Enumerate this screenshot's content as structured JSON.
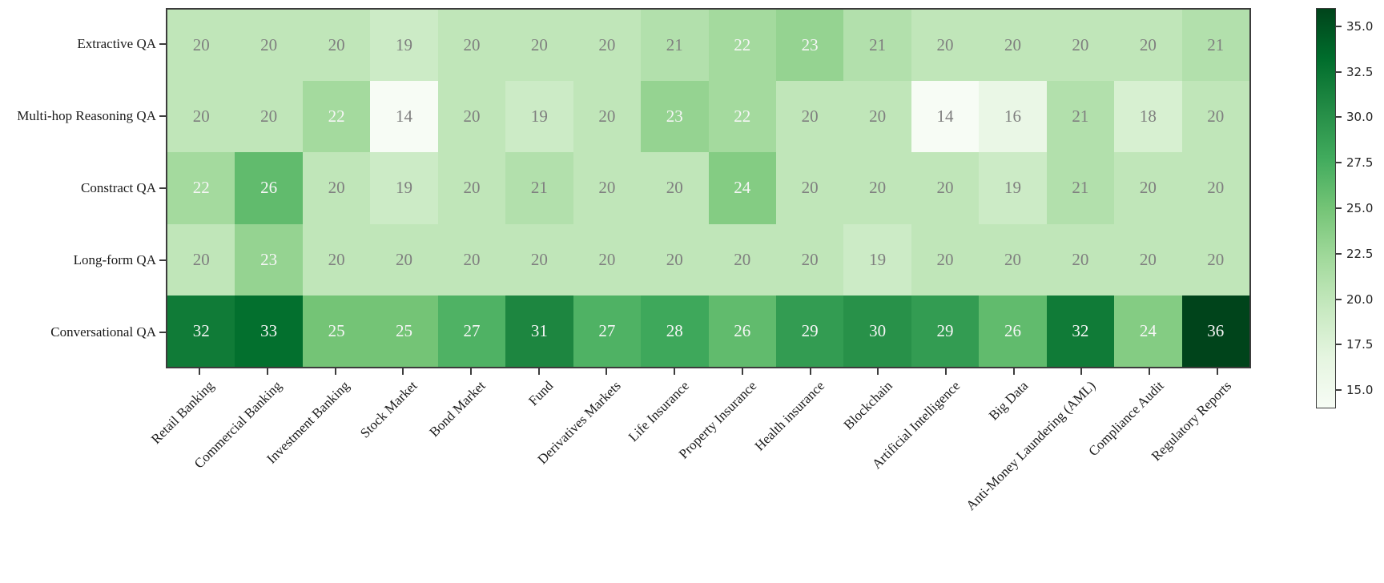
{
  "chart_data": {
    "type": "heatmap",
    "rows": [
      "Extractive QA",
      "Multi-hop Reasoning QA",
      "Constract QA",
      "Long-form QA",
      "Conversational QA"
    ],
    "columns": [
      "Retail Banking",
      "Commercial Banking",
      "Investment Banking",
      "Stock Market",
      "Bond Market",
      "Fund",
      "Derivatives Markets",
      "Life Insurance",
      "Property Insurance",
      "Health insurance",
      "Blockchain",
      "Artificial Intelligence",
      "Big Data",
      "Anti-Money Laundering (AML)",
      "Compliance Audit",
      "Regulatory Reports"
    ],
    "values": [
      [
        20,
        20,
        20,
        19,
        20,
        20,
        20,
        21,
        22,
        23,
        21,
        20,
        20,
        20,
        20,
        21
      ],
      [
        20,
        20,
        22,
        14,
        20,
        19,
        20,
        23,
        22,
        20,
        20,
        14,
        16,
        21,
        18,
        20
      ],
      [
        22,
        26,
        20,
        19,
        20,
        21,
        20,
        20,
        24,
        20,
        20,
        20,
        19,
        21,
        20,
        20
      ],
      [
        20,
        23,
        20,
        20,
        20,
        20,
        20,
        20,
        20,
        20,
        19,
        20,
        20,
        20,
        20,
        20
      ],
      [
        32,
        33,
        25,
        25,
        27,
        31,
        27,
        28,
        26,
        29,
        30,
        29,
        26,
        32,
        24,
        36
      ]
    ],
    "vmin": 14,
    "vmax": 36,
    "colormap": "Greens",
    "colormap_hex": [
      "#f7fcf5",
      "#e5f5e0",
      "#c7e9c0",
      "#a1d99b",
      "#74c476",
      "#41ab5d",
      "#238b45",
      "#006d2c",
      "#00441b"
    ],
    "colorbar_ticks": [
      15.0,
      17.5,
      20.0,
      22.5,
      25.0,
      27.5,
      30.0,
      32.5,
      35.0
    ],
    "colorbar_tick_decimals": 1,
    "colorbar_position": "right",
    "annotation_text_threshold": 22,
    "annotation_color_low": "#7f7f7f",
    "annotation_color_high": "#f6f6f6",
    "axis_color": "#3c3c3c",
    "grid": false,
    "title": "",
    "xlabel": "",
    "ylabel": ""
  }
}
